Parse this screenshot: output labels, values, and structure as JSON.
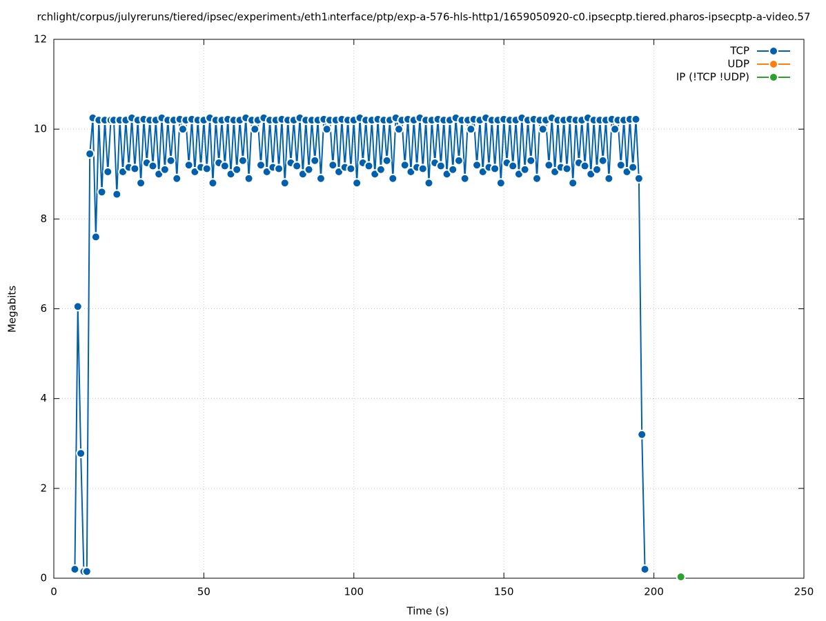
{
  "chart_data": {
    "type": "line",
    "title": "rchlight/corpus/julyreruns/tiered/ipsec/experiment₃/eth1ᵢnterface/ptp/exp-a-576-hls-http1/1659050920-c0.ipsecptp.tiered.pharos-ipsecptp-a-video.57",
    "xlabel": "Time (s)",
    "ylabel": "Megabits",
    "xlim": [
      0,
      250
    ],
    "xticks": [
      0,
      50,
      100,
      150,
      200,
      250
    ],
    "ylim": [
      0,
      12
    ],
    "yticks": [
      0,
      2,
      4,
      6,
      8,
      10,
      12
    ],
    "grid": true,
    "legend": "upper right",
    "series": [
      {
        "name": "TCP",
        "color": "#0060ad",
        "x": [
          7,
          8,
          9,
          10,
          11,
          12,
          13,
          14,
          15,
          16,
          17,
          18,
          19,
          20,
          21,
          22,
          23,
          24,
          25,
          26,
          27,
          28,
          29,
          30,
          31,
          32,
          33,
          34,
          35,
          36,
          37,
          38,
          39,
          40,
          41,
          42,
          43,
          44,
          45,
          46,
          47,
          48,
          49,
          50,
          51,
          52,
          53,
          54,
          55,
          56,
          57,
          58,
          59,
          60,
          61,
          62,
          63,
          64,
          65,
          66,
          67,
          68,
          69,
          70,
          71,
          72,
          73,
          74,
          75,
          76,
          77,
          78,
          79,
          80,
          81,
          82,
          83,
          84,
          85,
          86,
          87,
          88,
          89,
          90,
          91,
          92,
          93,
          94,
          95,
          96,
          97,
          98,
          99,
          100,
          101,
          102,
          103,
          104,
          105,
          106,
          107,
          108,
          109,
          110,
          111,
          112,
          113,
          114,
          115,
          116,
          117,
          118,
          119,
          120,
          121,
          122,
          123,
          124,
          125,
          126,
          127,
          128,
          129,
          130,
          131,
          132,
          133,
          134,
          135,
          136,
          137,
          138,
          139,
          140,
          141,
          142,
          143,
          144,
          145,
          146,
          147,
          148,
          149,
          150,
          151,
          152,
          153,
          154,
          155,
          156,
          157,
          158,
          159,
          160,
          161,
          162,
          163,
          164,
          165,
          166,
          167,
          168,
          169,
          170,
          171,
          172,
          173,
          174,
          175,
          176,
          177,
          178,
          179,
          180,
          181,
          182,
          183,
          184,
          185,
          186,
          187,
          188,
          189,
          190,
          191,
          192,
          193,
          194,
          195,
          196,
          197
        ],
        "values": [
          0.2,
          6.05,
          2.78,
          0.15,
          0.15,
          9.45,
          10.25,
          7.6,
          10.2,
          8.6,
          10.2,
          9.05,
          10.2,
          10.2,
          8.55,
          10.2,
          9.05,
          10.2,
          9.15,
          10.25,
          9.12,
          10.2,
          8.8,
          10.22,
          9.25,
          10.2,
          9.18,
          10.2,
          9.0,
          10.25,
          9.1,
          10.2,
          9.3,
          10.2,
          8.9,
          10.22,
          10.0,
          10.2,
          9.2,
          10.22,
          9.05,
          10.2,
          9.15,
          10.2,
          9.12,
          10.25,
          8.8,
          10.2,
          9.25,
          10.2,
          9.18,
          10.22,
          9.0,
          10.2,
          9.1,
          10.2,
          9.3,
          10.25,
          8.9,
          10.2,
          10.0,
          10.2,
          9.2,
          10.25,
          9.05,
          10.2,
          9.15,
          10.2,
          9.12,
          10.22,
          8.8,
          10.2,
          9.25,
          10.2,
          9.18,
          10.25,
          9.0,
          10.2,
          9.1,
          10.2,
          9.3,
          10.2,
          8.9,
          10.22,
          10.0,
          10.2,
          9.2,
          10.2,
          9.05,
          10.22,
          9.15,
          10.2,
          9.12,
          10.2,
          8.8,
          10.25,
          9.25,
          10.2,
          9.18,
          10.2,
          9.0,
          10.22,
          9.1,
          10.2,
          9.3,
          10.2,
          8.9,
          10.25,
          10.0,
          10.2,
          9.2,
          10.22,
          9.05,
          10.2,
          9.15,
          10.25,
          9.12,
          10.2,
          8.8,
          10.2,
          9.25,
          10.22,
          9.18,
          10.2,
          9.0,
          10.2,
          9.1,
          10.25,
          9.3,
          10.2,
          8.9,
          10.2,
          10.0,
          10.22,
          9.2,
          10.2,
          9.05,
          10.25,
          9.15,
          10.2,
          9.12,
          10.2,
          8.8,
          10.22,
          9.25,
          10.2,
          9.18,
          10.2,
          9.0,
          10.25,
          9.1,
          10.2,
          9.3,
          10.22,
          8.9,
          10.2,
          10.0,
          10.2,
          9.2,
          10.25,
          9.05,
          10.2,
          9.15,
          10.2,
          9.12,
          10.22,
          8.8,
          10.2,
          9.25,
          10.2,
          9.18,
          10.25,
          9.0,
          10.2,
          9.1,
          10.2,
          9.3,
          10.2,
          8.9,
          10.22,
          10.0,
          10.2,
          9.2,
          10.2,
          9.05,
          10.22,
          9.15,
          10.22,
          8.9,
          3.2,
          0.2
        ]
      },
      {
        "name": "UDP",
        "color": "#ff7f0e",
        "x": [],
        "values": []
      },
      {
        "name": "IP (!TCP  !UDP)",
        "color": "#2ca02c",
        "x": [
          209
        ],
        "values": [
          0.03
        ]
      }
    ]
  }
}
